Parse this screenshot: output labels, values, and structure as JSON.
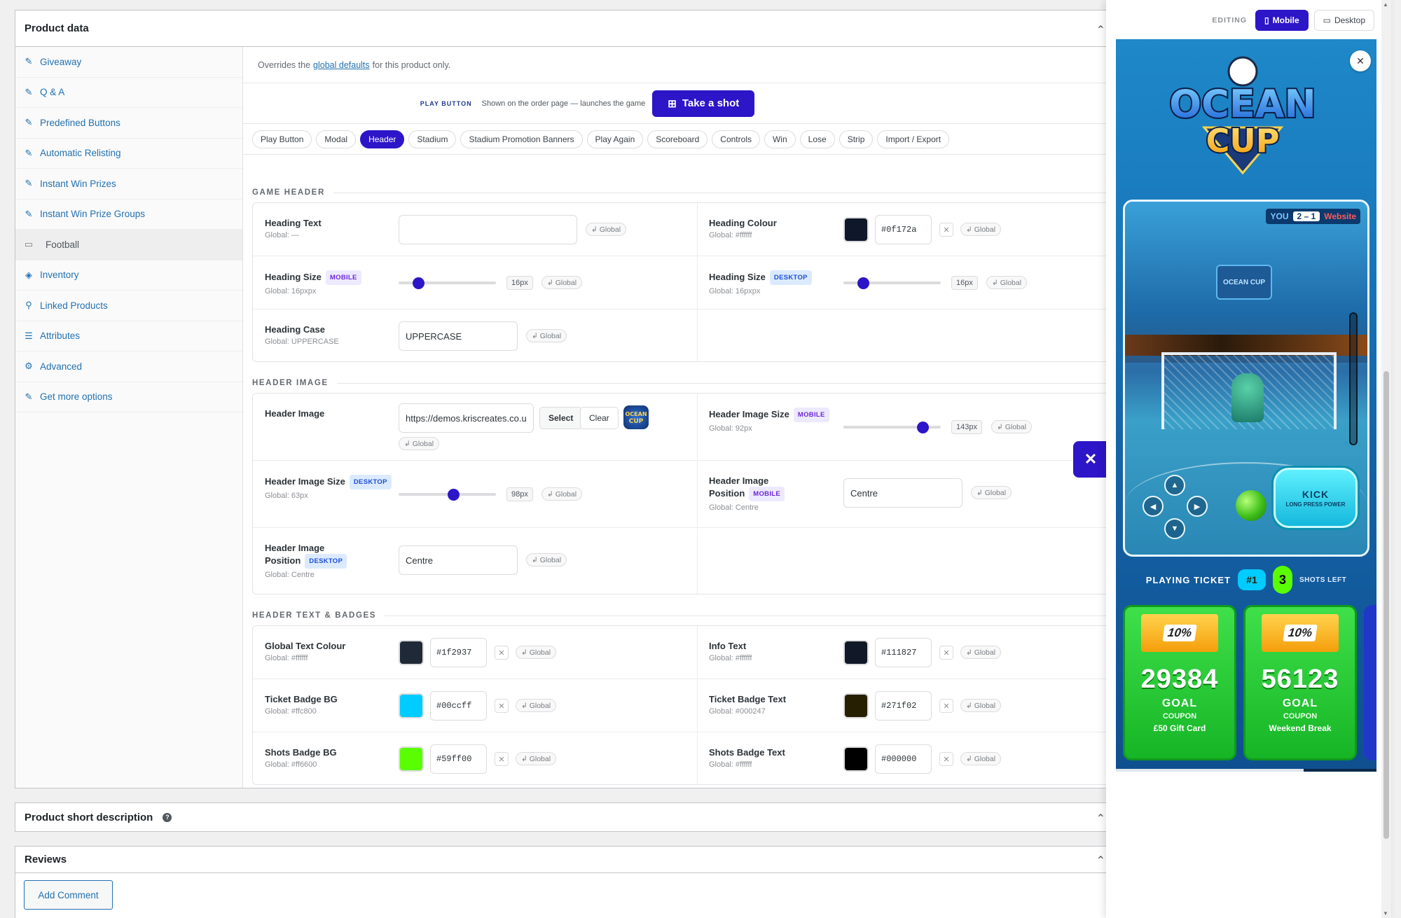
{
  "product_data": {
    "title": "Product data",
    "nav": [
      {
        "label": "Giveaway",
        "icon": "ticket-icon"
      },
      {
        "label": "Q & A",
        "icon": "ticket-icon"
      },
      {
        "label": "Predefined Buttons",
        "icon": "ticket-icon"
      },
      {
        "label": "Automatic Relisting",
        "icon": "ticket-icon"
      },
      {
        "label": "Instant Win Prizes",
        "icon": "ticket-icon"
      },
      {
        "label": "Instant Win Prize Groups",
        "icon": "ticket-icon"
      },
      {
        "label": "Football",
        "icon": "gamepad-icon"
      },
      {
        "label": "Inventory",
        "icon": "tag-icon"
      },
      {
        "label": "Linked Products",
        "icon": "link-icon"
      },
      {
        "label": "Attributes",
        "icon": "list-icon"
      },
      {
        "label": "Advanced",
        "icon": "gear-icon"
      },
      {
        "label": "Get more options",
        "icon": "plug-icon"
      }
    ],
    "overrides_prefix": "Overrides the",
    "overrides_link": "global defaults",
    "overrides_suffix": "for this product only.",
    "play_label": "PLAY BUTTON",
    "play_desc": "Shown on the order page — launches the game",
    "play_button": "Take a shot",
    "tabs": [
      "Play Button",
      "Modal",
      "Header",
      "Stadium",
      "Stadium Promotion Banners",
      "Play Again",
      "Scoreboard",
      "Controls",
      "Win",
      "Lose",
      "Strip",
      "Import / Export"
    ],
    "active_tab": "Header",
    "global_chip": "↲ Global",
    "sections": {
      "game_header": "GAME HEADER",
      "header_image": "HEADER IMAGE",
      "header_text_badges": "HEADER TEXT & BADGES"
    },
    "fields": {
      "heading_text": {
        "label": "Heading Text",
        "global": "Global: —",
        "value": ""
      },
      "heading_colour": {
        "label": "Heading Colour",
        "global": "Global: #ffffff",
        "value": "#0f172a"
      },
      "heading_size_mobile": {
        "label": "Heading Size",
        "badge": "MOBILE",
        "global": "Global: 16pxpx",
        "value": "16px",
        "level": 0.16
      },
      "heading_size_desktop": {
        "label": "Heading Size",
        "badge": "DESKTOP",
        "global": "Global: 16pxpx",
        "value": "16px",
        "level": 0.16
      },
      "heading_case": {
        "label": "Heading Case",
        "global": "Global: UPPERCASE",
        "value": "UPPERCASE"
      },
      "header_image": {
        "label": "Header Image",
        "value": "https://demos.kriscreates.co.u",
        "select": "Select",
        "clear": "Clear"
      },
      "header_image_size_mobile": {
        "label": "Header Image Size",
        "badge": "MOBILE",
        "global": "Global: 92px",
        "value": "143px",
        "level": 0.86
      },
      "header_image_size_desktop": {
        "label": "Header Image Size",
        "badge": "DESKTOP",
        "global": "Global: 63px",
        "value": "98px",
        "level": 0.57
      },
      "header_image_position_mobile": {
        "label_1": "Header Image",
        "label_2": "Position",
        "badge": "MOBILE",
        "global": "Global: Centre",
        "value": "Centre"
      },
      "header_image_position_desktop": {
        "label_1": "Header Image",
        "label_2": "Position",
        "badge": "DESKTOP",
        "global": "Global: Centre",
        "value": "Centre"
      },
      "global_text_colour": {
        "label": "Global Text Colour",
        "global": "Global: #ffffff",
        "value": "#1f2937"
      },
      "info_text": {
        "label": "Info Text",
        "global": "Global: #ffffff",
        "value": "#111827"
      },
      "ticket_badge_bg": {
        "label": "Ticket Badge BG",
        "global": "Global: #ffc800",
        "value": "#00ccff"
      },
      "ticket_badge_text": {
        "label": "Ticket Badge Text",
        "global": "Global: #000247",
        "value": "#271f02"
      },
      "shots_badge_bg": {
        "label": "Shots Badge BG",
        "global": "Global: #ff6600",
        "value": "#59ff00"
      },
      "shots_badge_text": {
        "label": "Shots Badge Text",
        "global": "Global: #ffffff",
        "value": "#000000"
      }
    }
  },
  "short_description": {
    "title": "Product short description"
  },
  "reviews": {
    "title": "Reviews",
    "add_comment": "Add Comment"
  },
  "preview": {
    "editing_label": "EDITING",
    "mobile": "Mobile",
    "desktop": "Desktop",
    "logo_line1": "OCEAN",
    "logo_line2": "CUP",
    "stadium_sign": "OCEAN CUP",
    "score_you": "YOU",
    "score": "2 – 1",
    "score_opponent": "Website",
    "kick_title": "KICK",
    "kick_sub": "LONG PRESS POWER",
    "playing_ticket": "PLAYING TICKET",
    "ticket_number": "#1",
    "shots_left_num": "3",
    "shots_left_label": "SHOTS LEFT",
    "coupons": [
      {
        "tag": "10%",
        "code": "29384",
        "goal": "GOAL",
        "coupon": "COUPON",
        "prize": "£50 Gift Card"
      },
      {
        "tag": "10%",
        "code": "56123",
        "goal": "GOAL",
        "coupon": "COUPON",
        "prize": "Weekend Break"
      }
    ],
    "progress": 0.72
  }
}
